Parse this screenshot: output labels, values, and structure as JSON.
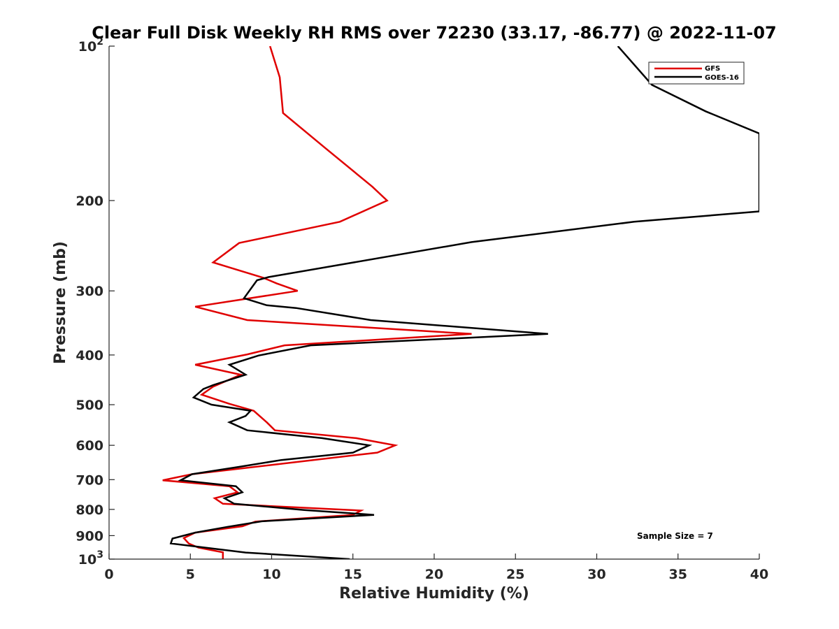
{
  "chart_data": {
    "type": "line",
    "title": "Clear Full Disk Weekly RH RMS over 72230 (33.17, -86.77) @ 2022-11-07",
    "xlabel": "Relative Humidity (%)",
    "ylabel": "Pressure (mb)",
    "xlim": [
      0,
      40
    ],
    "ylim": [
      100,
      1000
    ],
    "yscale": "log",
    "y_reversed": true,
    "x_ticks": [
      0,
      5,
      10,
      15,
      20,
      25,
      30,
      35,
      40
    ],
    "x_tick_labels": [
      "0",
      "5",
      "10",
      "15",
      "20",
      "25",
      "30",
      "35",
      "40"
    ],
    "y_ticks": [
      100,
      200,
      300,
      400,
      500,
      600,
      700,
      800,
      900,
      1000
    ],
    "y_tick_labels": [
      {
        "text": "10",
        "sup": "2"
      },
      {
        "text": "200",
        "sup": ""
      },
      {
        "text": "300",
        "sup": ""
      },
      {
        "text": "400",
        "sup": ""
      },
      {
        "text": "500",
        "sup": ""
      },
      {
        "text": "600",
        "sup": ""
      },
      {
        "text": "700",
        "sup": ""
      },
      {
        "text": "800",
        "sup": ""
      },
      {
        "text": "900",
        "sup": ""
      },
      {
        "text": "10",
        "sup": "3"
      }
    ],
    "legend_position": "top-right",
    "series": [
      {
        "name": "GFS",
        "color": "#e00000",
        "points": [
          [
            9.9,
            100
          ],
          [
            10.5,
            115
          ],
          [
            10.7,
            135
          ],
          [
            13.3,
            158
          ],
          [
            16.2,
            188
          ],
          [
            17.1,
            200
          ],
          [
            14.2,
            220
          ],
          [
            8.0,
            242
          ],
          [
            6.4,
            264
          ],
          [
            9.5,
            283
          ],
          [
            10.3,
            290
          ],
          [
            11.6,
            300
          ],
          [
            5.3,
            322
          ],
          [
            8.5,
            342
          ],
          [
            22.3,
            364
          ],
          [
            10.8,
            383
          ],
          [
            8.5,
            399
          ],
          [
            5.3,
            418
          ],
          [
            8.1,
            437
          ],
          [
            6.4,
            461
          ],
          [
            5.7,
            478
          ],
          [
            7.4,
            498
          ],
          [
            8.9,
            514
          ],
          [
            9.7,
            541
          ],
          [
            10.2,
            561
          ],
          [
            15.2,
            581
          ],
          [
            17.6,
            600
          ],
          [
            16.5,
            620
          ],
          [
            5.1,
            683
          ],
          [
            3.3,
            702
          ],
          [
            7.4,
            721
          ],
          [
            7.9,
            741
          ],
          [
            6.5,
            761
          ],
          [
            7.0,
            780
          ],
          [
            15.5,
            804
          ],
          [
            15.0,
            820
          ],
          [
            9.0,
            845
          ],
          [
            8.2,
            863
          ],
          [
            5.3,
            888
          ],
          [
            4.6,
            910
          ],
          [
            4.9,
            932
          ],
          [
            5.5,
            950
          ],
          [
            7.0,
            970
          ],
          [
            7.0,
            1000
          ]
        ]
      },
      {
        "name": "GOES-16",
        "color": "#000000",
        "points": [
          [
            31.3,
            100
          ],
          [
            33.4,
            119
          ],
          [
            36.7,
            134
          ],
          [
            40.0,
            148
          ],
          [
            40.0,
            210
          ],
          [
            32.3,
            220
          ],
          [
            22.3,
            241
          ],
          [
            9.8,
            282
          ],
          [
            9.1,
            286
          ],
          [
            8.3,
            310
          ],
          [
            9.7,
            320
          ],
          [
            11.5,
            324
          ],
          [
            16.1,
            342
          ],
          [
            27.0,
            364
          ],
          [
            12.4,
            383
          ],
          [
            9.2,
            401
          ],
          [
            7.4,
            418
          ],
          [
            8.4,
            437
          ],
          [
            6.4,
            458
          ],
          [
            5.8,
            466
          ],
          [
            5.2,
            484
          ],
          [
            6.3,
            500
          ],
          [
            8.7,
            514
          ],
          [
            8.4,
            526
          ],
          [
            7.4,
            541
          ],
          [
            8.5,
            561
          ],
          [
            13.1,
            581
          ],
          [
            16.0,
            600
          ],
          [
            15.0,
            620
          ],
          [
            10.6,
            641
          ],
          [
            8.0,
            661
          ],
          [
            5.1,
            683
          ],
          [
            4.4,
            702
          ],
          [
            7.8,
            721
          ],
          [
            8.2,
            741
          ],
          [
            7.1,
            761
          ],
          [
            7.7,
            780
          ],
          [
            12.0,
            802
          ],
          [
            16.3,
            820
          ],
          [
            9.4,
            844
          ],
          [
            7.3,
            865
          ],
          [
            5.3,
            888
          ],
          [
            3.9,
            912
          ],
          [
            3.8,
            932
          ],
          [
            8.4,
            971
          ],
          [
            14.8,
            1000
          ]
        ]
      }
    ],
    "annotations": [
      {
        "text": "Sample Size = 7"
      }
    ]
  }
}
